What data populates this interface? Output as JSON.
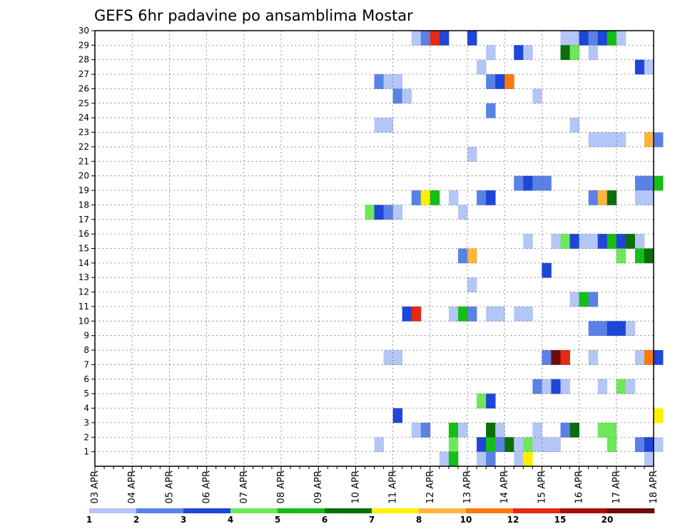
{
  "chart_data": {
    "type": "heatmap",
    "title": "GEFS 6hr padavine po ansamblima Mostar",
    "xlabel": "",
    "ylabel": "",
    "x_range": [
      "03 APR 00",
      "18 APR 00"
    ],
    "x_step_hours": 6,
    "x_ticks": [
      "03 APR",
      "04 APR",
      "05 APR",
      "06 APR",
      "07 APR",
      "08 APR",
      "09 APR",
      "10 APR",
      "11 APR",
      "12 APR",
      "13 APR",
      "14 APR",
      "15 APR",
      "16 APR",
      "17 APR",
      "18 APR"
    ],
    "y_ticks": [
      1,
      2,
      3,
      4,
      5,
      6,
      7,
      8,
      9,
      10,
      11,
      12,
      13,
      14,
      15,
      16,
      17,
      18,
      19,
      20,
      21,
      22,
      23,
      24,
      25,
      26,
      27,
      28,
      29,
      30
    ],
    "ylim": [
      0,
      30
    ],
    "grid": true,
    "legend": {
      "placement": "bottom",
      "labels": [
        "1",
        "2",
        "3",
        "4",
        "5",
        "6",
        "7",
        "8",
        "10",
        "12",
        "15",
        "20"
      ],
      "colors": [
        "#b4c6f5",
        "#5a82e6",
        "#1e46d8",
        "#6ee85a",
        "#14be14",
        "#0a6e0a",
        "#fff000",
        "#ffb43c",
        "#ff780a",
        "#e62814",
        "#aa0a0a",
        "#6e0a0a"
      ]
    },
    "cells": [
      {
        "member": 30,
        "slot": 34,
        "level": 1
      },
      {
        "member": 30,
        "slot": 35,
        "level": 2
      },
      {
        "member": 30,
        "slot": 36,
        "level": 10
      },
      {
        "member": 30,
        "slot": 37,
        "level": 3
      },
      {
        "member": 30,
        "slot": 40,
        "level": 3
      },
      {
        "member": 30,
        "slot": 50,
        "level": 1
      },
      {
        "member": 30,
        "slot": 51,
        "level": 1
      },
      {
        "member": 30,
        "slot": 52,
        "level": 3
      },
      {
        "member": 30,
        "slot": 53,
        "level": 2
      },
      {
        "member": 30,
        "slot": 54,
        "level": 3
      },
      {
        "member": 30,
        "slot": 55,
        "level": 5
      },
      {
        "member": 30,
        "slot": 56,
        "level": 1
      },
      {
        "member": 29,
        "slot": 42,
        "level": 1
      },
      {
        "member": 29,
        "slot": 45,
        "level": 3
      },
      {
        "member": 29,
        "slot": 46,
        "level": 1
      },
      {
        "member": 29,
        "slot": 50,
        "level": 6
      },
      {
        "member": 29,
        "slot": 51,
        "level": 4
      },
      {
        "member": 29,
        "slot": 53,
        "level": 1
      },
      {
        "member": 28,
        "slot": 41,
        "level": 1
      },
      {
        "member": 28,
        "slot": 58,
        "level": 3
      },
      {
        "member": 28,
        "slot": 59,
        "level": 1
      },
      {
        "member": 27,
        "slot": 30,
        "level": 2
      },
      {
        "member": 27,
        "slot": 31,
        "level": 1
      },
      {
        "member": 27,
        "slot": 32,
        "level": 1
      },
      {
        "member": 27,
        "slot": 42,
        "level": 2
      },
      {
        "member": 27,
        "slot": 43,
        "level": 3
      },
      {
        "member": 27,
        "slot": 44,
        "level": 9
      },
      {
        "member": 26,
        "slot": 32,
        "level": 2
      },
      {
        "member": 26,
        "slot": 33,
        "level": 1
      },
      {
        "member": 26,
        "slot": 47,
        "level": 1
      },
      {
        "member": 25,
        "slot": 42,
        "level": 2
      },
      {
        "member": 24,
        "slot": 30,
        "level": 1
      },
      {
        "member": 24,
        "slot": 31,
        "level": 1
      },
      {
        "member": 24,
        "slot": 51,
        "level": 1
      },
      {
        "member": 23,
        "slot": 53,
        "level": 1
      },
      {
        "member": 23,
        "slot": 54,
        "level": 1
      },
      {
        "member": 23,
        "slot": 55,
        "level": 1
      },
      {
        "member": 23,
        "slot": 56,
        "level": 1
      },
      {
        "member": 23,
        "slot": 59,
        "level": 8
      },
      {
        "member": 23,
        "slot": 60,
        "level": 2
      },
      {
        "member": 22,
        "slot": 40,
        "level": 1
      },
      {
        "member": 20,
        "slot": 45,
        "level": 2
      },
      {
        "member": 20,
        "slot": 46,
        "level": 3
      },
      {
        "member": 20,
        "slot": 47,
        "level": 2
      },
      {
        "member": 20,
        "slot": 48,
        "level": 2
      },
      {
        "member": 20,
        "slot": 58,
        "level": 2
      },
      {
        "member": 20,
        "slot": 59,
        "level": 2
      },
      {
        "member": 20,
        "slot": 60,
        "level": 5
      },
      {
        "member": 19,
        "slot": 34,
        "level": 2
      },
      {
        "member": 19,
        "slot": 35,
        "level": 7
      },
      {
        "member": 19,
        "slot": 36,
        "level": 5
      },
      {
        "member": 19,
        "slot": 38,
        "level": 1
      },
      {
        "member": 19,
        "slot": 41,
        "level": 2
      },
      {
        "member": 19,
        "slot": 42,
        "level": 3
      },
      {
        "member": 19,
        "slot": 53,
        "level": 2
      },
      {
        "member": 19,
        "slot": 54,
        "level": 8
      },
      {
        "member": 19,
        "slot": 55,
        "level": 6
      },
      {
        "member": 19,
        "slot": 58,
        "level": 1
      },
      {
        "member": 19,
        "slot": 59,
        "level": 1
      },
      {
        "member": 18,
        "slot": 29,
        "level": 4
      },
      {
        "member": 18,
        "slot": 30,
        "level": 3
      },
      {
        "member": 18,
        "slot": 31,
        "level": 2
      },
      {
        "member": 18,
        "slot": 32,
        "level": 1
      },
      {
        "member": 18,
        "slot": 39,
        "level": 1
      },
      {
        "member": 16,
        "slot": 46,
        "level": 1
      },
      {
        "member": 16,
        "slot": 49,
        "level": 1
      },
      {
        "member": 16,
        "slot": 50,
        "level": 4
      },
      {
        "member": 16,
        "slot": 51,
        "level": 3
      },
      {
        "member": 16,
        "slot": 52,
        "level": 1
      },
      {
        "member": 16,
        "slot": 53,
        "level": 1
      },
      {
        "member": 16,
        "slot": 54,
        "level": 3
      },
      {
        "member": 16,
        "slot": 55,
        "level": 5
      },
      {
        "member": 16,
        "slot": 56,
        "level": 3
      },
      {
        "member": 16,
        "slot": 57,
        "level": 6
      },
      {
        "member": 16,
        "slot": 58,
        "level": 1
      },
      {
        "member": 15,
        "slot": 39,
        "level": 2
      },
      {
        "member": 15,
        "slot": 40,
        "level": 8
      },
      {
        "member": 15,
        "slot": 56,
        "level": 4
      },
      {
        "member": 15,
        "slot": 58,
        "level": 5
      },
      {
        "member": 15,
        "slot": 59,
        "level": 6
      },
      {
        "member": 14,
        "slot": 48,
        "level": 3
      },
      {
        "member": 13,
        "slot": 40,
        "level": 1
      },
      {
        "member": 12,
        "slot": 51,
        "level": 1
      },
      {
        "member": 12,
        "slot": 52,
        "level": 5
      },
      {
        "member": 12,
        "slot": 53,
        "level": 2
      },
      {
        "member": 11,
        "slot": 33,
        "level": 3
      },
      {
        "member": 11,
        "slot": 34,
        "level": 10
      },
      {
        "member": 11,
        "slot": 38,
        "level": 1
      },
      {
        "member": 11,
        "slot": 39,
        "level": 5
      },
      {
        "member": 11,
        "slot": 40,
        "level": 2
      },
      {
        "member": 11,
        "slot": 42,
        "level": 1
      },
      {
        "member": 11,
        "slot": 43,
        "level": 1
      },
      {
        "member": 11,
        "slot": 45,
        "level": 1
      },
      {
        "member": 11,
        "slot": 46,
        "level": 1
      },
      {
        "member": 10,
        "slot": 53,
        "level": 2
      },
      {
        "member": 10,
        "slot": 54,
        "level": 2
      },
      {
        "member": 10,
        "slot": 55,
        "level": 3
      },
      {
        "member": 10,
        "slot": 56,
        "level": 3
      },
      {
        "member": 10,
        "slot": 57,
        "level": 1
      },
      {
        "member": 8,
        "slot": 31,
        "level": 1
      },
      {
        "member": 8,
        "slot": 32,
        "level": 1
      },
      {
        "member": 8,
        "slot": 48,
        "level": 2
      },
      {
        "member": 8,
        "slot": 49,
        "level": 12
      },
      {
        "member": 8,
        "slot": 50,
        "level": 10
      },
      {
        "member": 8,
        "slot": 53,
        "level": 1
      },
      {
        "member": 8,
        "slot": 58,
        "level": 1
      },
      {
        "member": 8,
        "slot": 59,
        "level": 9
      },
      {
        "member": 8,
        "slot": 60,
        "level": 3
      },
      {
        "member": 6,
        "slot": 47,
        "level": 2
      },
      {
        "member": 6,
        "slot": 48,
        "level": 1
      },
      {
        "member": 6,
        "slot": 49,
        "level": 3
      },
      {
        "member": 6,
        "slot": 50,
        "level": 1
      },
      {
        "member": 6,
        "slot": 54,
        "level": 1
      },
      {
        "member": 6,
        "slot": 56,
        "level": 4
      },
      {
        "member": 6,
        "slot": 57,
        "level": 1
      },
      {
        "member": 5,
        "slot": 41,
        "level": 4
      },
      {
        "member": 5,
        "slot": 42,
        "level": 3
      },
      {
        "member": 4,
        "slot": 32,
        "level": 3
      },
      {
        "member": 4,
        "slot": 60,
        "level": 7
      },
      {
        "member": 3,
        "slot": 34,
        "level": 1
      },
      {
        "member": 3,
        "slot": 35,
        "level": 2
      },
      {
        "member": 3,
        "slot": 38,
        "level": 5
      },
      {
        "member": 3,
        "slot": 39,
        "level": 1
      },
      {
        "member": 3,
        "slot": 42,
        "level": 6
      },
      {
        "member": 3,
        "slot": 43,
        "level": 1
      },
      {
        "member": 3,
        "slot": 47,
        "level": 1
      },
      {
        "member": 3,
        "slot": 50,
        "level": 2
      },
      {
        "member": 3,
        "slot": 51,
        "level": 6
      },
      {
        "member": 3,
        "slot": 54,
        "level": 4
      },
      {
        "member": 3,
        "slot": 55,
        "level": 4
      },
      {
        "member": 2,
        "slot": 30,
        "level": 1
      },
      {
        "member": 2,
        "slot": 38,
        "level": 4
      },
      {
        "member": 2,
        "slot": 41,
        "level": 3
      },
      {
        "member": 2,
        "slot": 42,
        "level": 5
      },
      {
        "member": 2,
        "slot": 43,
        "level": 2
      },
      {
        "member": 2,
        "slot": 44,
        "level": 6
      },
      {
        "member": 2,
        "slot": 45,
        "level": 1
      },
      {
        "member": 2,
        "slot": 46,
        "level": 4
      },
      {
        "member": 2,
        "slot": 47,
        "level": 1
      },
      {
        "member": 2,
        "slot": 48,
        "level": 1
      },
      {
        "member": 2,
        "slot": 49,
        "level": 1
      },
      {
        "member": 2,
        "slot": 55,
        "level": 4
      },
      {
        "member": 2,
        "slot": 58,
        "level": 2
      },
      {
        "member": 2,
        "slot": 59,
        "level": 3
      },
      {
        "member": 2,
        "slot": 60,
        "level": 1
      },
      {
        "member": 1,
        "slot": 37,
        "level": 1
      },
      {
        "member": 1,
        "slot": 38,
        "level": 5
      },
      {
        "member": 1,
        "slot": 41,
        "level": 1
      },
      {
        "member": 1,
        "slot": 42,
        "level": 2
      },
      {
        "member": 1,
        "slot": 45,
        "level": 1
      },
      {
        "member": 1,
        "slot": 46,
        "level": 7
      },
      {
        "member": 1,
        "slot": 59,
        "level": 1
      }
    ]
  }
}
